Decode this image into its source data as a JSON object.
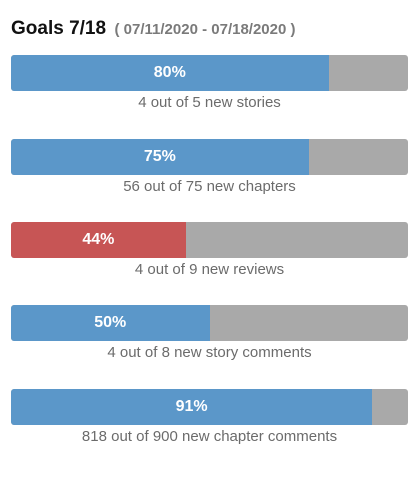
{
  "header": {
    "title": "Goals 7/18",
    "range": "( 07/11/2020 - 07/18/2020 )"
  },
  "colors": {
    "normal_fill": "#5b97c9",
    "warning_fill": "#c75555",
    "track": "#a9a9a9"
  },
  "goals": [
    {
      "percent_label": "80%",
      "progress": 0.8,
      "status": "normal",
      "caption": "4 out of 5 new stories"
    },
    {
      "percent_label": "75%",
      "progress": 0.75,
      "status": "normal",
      "caption": "56 out of 75 new chapters"
    },
    {
      "percent_label": "44%",
      "progress": 0.44,
      "status": "warning",
      "caption": "4 out of 9 new reviews"
    },
    {
      "percent_label": "50%",
      "progress": 0.5,
      "status": "normal",
      "caption": "4 out of 8 new story comments"
    },
    {
      "percent_label": "91%",
      "progress": 0.91,
      "status": "normal",
      "caption": "818 out of 900 new chapter comments"
    }
  ]
}
